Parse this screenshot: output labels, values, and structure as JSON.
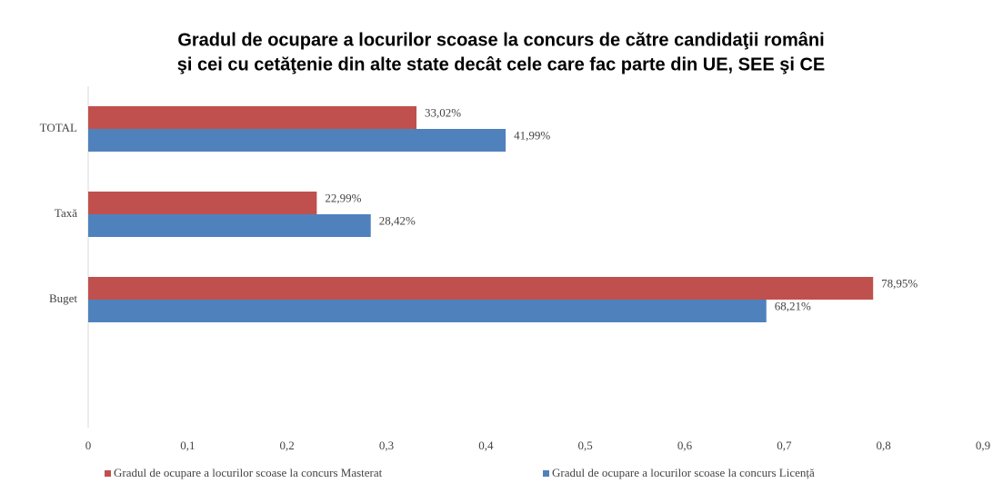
{
  "chart_data": {
    "type": "barh",
    "title": [
      "Gradul de ocupare a locurilor scoase la concurs de către candidaţii români",
      "şi cei cu cetăţenie din alte state decât cele care fac parte din UE, SEE şi CE"
    ],
    "categories": [
      "TOTAL",
      "Taxă",
      "Buget"
    ],
    "series": [
      {
        "name": "Gradul de ocupare a locurilor scoase la concurs Masterat",
        "color": "#c0504d",
        "values": [
          0.3302,
          0.2299,
          0.7895
        ],
        "value_labels": [
          "33,02%",
          "22,99%",
          "78,95%"
        ]
      },
      {
        "name": "Gradul de ocupare a locurilor scoase la concurs Licență",
        "color": "#4f81bd",
        "values": [
          0.4199,
          0.2842,
          0.6821
        ],
        "value_labels": [
          "41,99%",
          "28,42%",
          "68,21%"
        ]
      }
    ],
    "xlim": [
      0,
      0.9
    ],
    "xticks": [
      0,
      {
        "value": 0.1,
        "label": "0,1"
      },
      {
        "value": 0.2,
        "label": "0,2"
      },
      {
        "value": 0.3,
        "label": "0,3"
      },
      {
        "value": 0.4,
        "label": "0,4"
      },
      {
        "value": 0.5,
        "label": "0,5"
      },
      {
        "value": 0.6,
        "label": "0,6"
      },
      {
        "value": 0.7,
        "label": "0,7"
      },
      {
        "value": 0.8,
        "label": "0,8"
      },
      {
        "value": 0.9,
        "label": "0,9"
      }
    ],
    "legend": "bottom"
  }
}
